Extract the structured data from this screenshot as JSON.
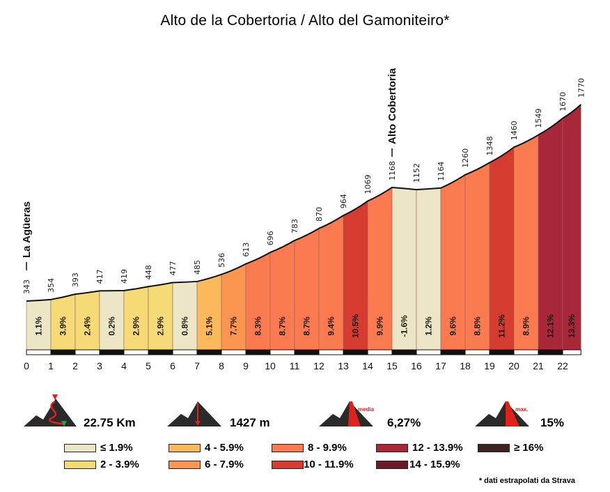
{
  "title": "Alto de la Cobertoria / Alto del Gamoniteiro*",
  "chart_data": {
    "type": "area",
    "title": "Alto de la Cobertoria / Alto del Gamoniteiro*",
    "x_unit": "km",
    "x_ticks": [
      "0",
      "1",
      "2",
      "3",
      "4",
      "5",
      "6",
      "7",
      "8",
      "9",
      "10",
      "11",
      "12",
      "13",
      "14",
      "15",
      "16",
      "17",
      "18",
      "19",
      "20",
      "21",
      "22"
    ],
    "km_points": [
      0,
      1,
      2,
      3,
      4,
      5,
      6,
      7,
      8,
      9,
      10,
      11,
      12,
      13,
      14,
      15,
      16,
      17,
      18,
      19,
      20,
      21,
      22,
      22.75
    ],
    "elevations": [
      343,
      354,
      393,
      417,
      419,
      448,
      477,
      485,
      536,
      613,
      696,
      783,
      870,
      964,
      1069,
      1168,
      1152,
      1164,
      1260,
      1348,
      1460,
      1549,
      1670,
      1770
    ],
    "segment_gradients": [
      "1.1%",
      "3.9%",
      "2.4%",
      "0.2%",
      "2.9%",
      "2.9%",
      "0.8%",
      "5.1%",
      "7.7%",
      "8.3%",
      "8.7%",
      "8.7%",
      "9.4%",
      "10.5%",
      "9.9%",
      "-1.6%",
      "1.2%",
      "9.6%",
      "8.8%",
      "11.2%",
      "8.9%",
      "12.1%",
      "13.3%"
    ],
    "segment_colors": [
      "#ede6c6",
      "#f5da76",
      "#f5da76",
      "#ede6c6",
      "#f5da76",
      "#f5da76",
      "#ede6c6",
      "#fbb95b",
      "#fb954f",
      "#fb7a50",
      "#fb7a50",
      "#fb7a50",
      "#fb7a50",
      "#d63b2f",
      "#fb7a50",
      "#ede6c6",
      "#ede6c6",
      "#fb7a50",
      "#fb7a50",
      "#d63b2f",
      "#fb7a50",
      "#a8283a",
      "#a8283a"
    ],
    "landmarks": [
      {
        "label": "La Agüeras",
        "km": 0
      },
      {
        "label": "Alto Cobertoria",
        "km": 15
      }
    ]
  },
  "stats": {
    "distance": "22.75 Km",
    "elevation_gain": "1427 m",
    "avg_gradient": "6,27%",
    "avg_label": "media",
    "max_gradient": "15%",
    "max_label": "max."
  },
  "legend": [
    {
      "label": "≤ 1.9%",
      "color": "#ede6c6"
    },
    {
      "label": "2 - 3.9%",
      "color": "#f5da76"
    },
    {
      "label": "4 - 5.9%",
      "color": "#fbb95b"
    },
    {
      "label": "6 - 7.9%",
      "color": "#fb954f"
    },
    {
      "label": "8 - 9.9%",
      "color": "#fb7a50"
    },
    {
      "label": "10 - 11.9%",
      "color": "#d63b2f"
    },
    {
      "label": "12 - 13.9%",
      "color": "#a8283a"
    },
    {
      "label": "14 - 15.9%",
      "color": "#6e1a2a"
    },
    {
      "label": "≥ 16%",
      "color": "#3e2420"
    }
  ],
  "note": "* dati estrapolati da Strava"
}
